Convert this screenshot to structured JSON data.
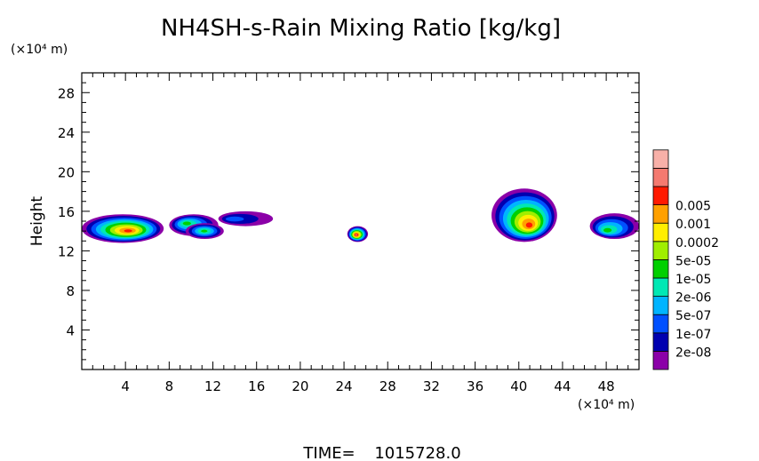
{
  "chart_data": {
    "type": "heatmap",
    "title": "NH4SH-s-Rain Mixing Ratio [kg/kg]",
    "xlabel": "",
    "ylabel": "Height",
    "x_unit": "(×10⁴ m)",
    "y_unit": "(×10⁴ m)",
    "xlim": [
      0,
      51
    ],
    "ylim": [
      0,
      30
    ],
    "x_ticks": [
      4,
      8,
      12,
      16,
      20,
      24,
      28,
      32,
      36,
      40,
      44,
      48
    ],
    "y_ticks": [
      4,
      8,
      12,
      16,
      20,
      24,
      28
    ],
    "x_minor_step": 1,
    "y_minor_step": 1,
    "grid": false,
    "time_label": "TIME",
    "time_value": "1015728.0",
    "colorbar": {
      "placement": "right",
      "levels": [
        {
          "label": "2e-08",
          "color": "#8b00a8"
        },
        {
          "label": "1e-07",
          "color": "#0000b0"
        },
        {
          "label": "5e-07",
          "color": "#0050ff"
        },
        {
          "label": "2e-06",
          "color": "#00b4ff"
        },
        {
          "label": "1e-05",
          "color": "#00e8b4"
        },
        {
          "label": "5e-05",
          "color": "#00d000"
        },
        {
          "label": "0.0002",
          "color": "#a0ee00"
        },
        {
          "label": "0.001",
          "color": "#ffee00"
        },
        {
          "label": "0.005",
          "color": "#ffa000"
        },
        {
          "label": "",
          "color": "#ff1a00"
        },
        {
          "label": "",
          "color": "#f47a70"
        },
        {
          "label": "",
          "color": "#f8b0a8"
        }
      ]
    },
    "features": [
      {
        "x": [
          0,
          7.5
        ],
        "y": [
          12.8,
          15.7
        ],
        "peak_x": 4.3,
        "peak_y": 14.0,
        "max_level": 9
      },
      {
        "x": [
          8,
          12.5
        ],
        "y": [
          13.5,
          15.7
        ],
        "peak_x": 9.5,
        "peak_y": 14.8,
        "max_level": 5
      },
      {
        "x": [
          9.5,
          13
        ],
        "y": [
          13.2,
          14.8
        ],
        "peak_x": 11.2,
        "peak_y": 14.0,
        "max_level": 5
      },
      {
        "x": [
          12.5,
          17.5
        ],
        "y": [
          14.5,
          16
        ],
        "peak_x": 13.5,
        "peak_y": 15.2,
        "max_level": 2
      },
      {
        "x": [
          24.3,
          26.2
        ],
        "y": [
          12.9,
          14.5
        ],
        "peak_x": 25.1,
        "peak_y": 13.6,
        "max_level": 10
      },
      {
        "x": [
          37.5,
          43.5
        ],
        "y": [
          12.9,
          18.3
        ],
        "peak_x": 41.0,
        "peak_y": 14.5,
        "max_level": 9
      },
      {
        "x": [
          46.5,
          51
        ],
        "y": [
          13.2,
          15.8
        ],
        "peak_x": 48.0,
        "peak_y": 14.0,
        "max_level": 5
      }
    ]
  }
}
